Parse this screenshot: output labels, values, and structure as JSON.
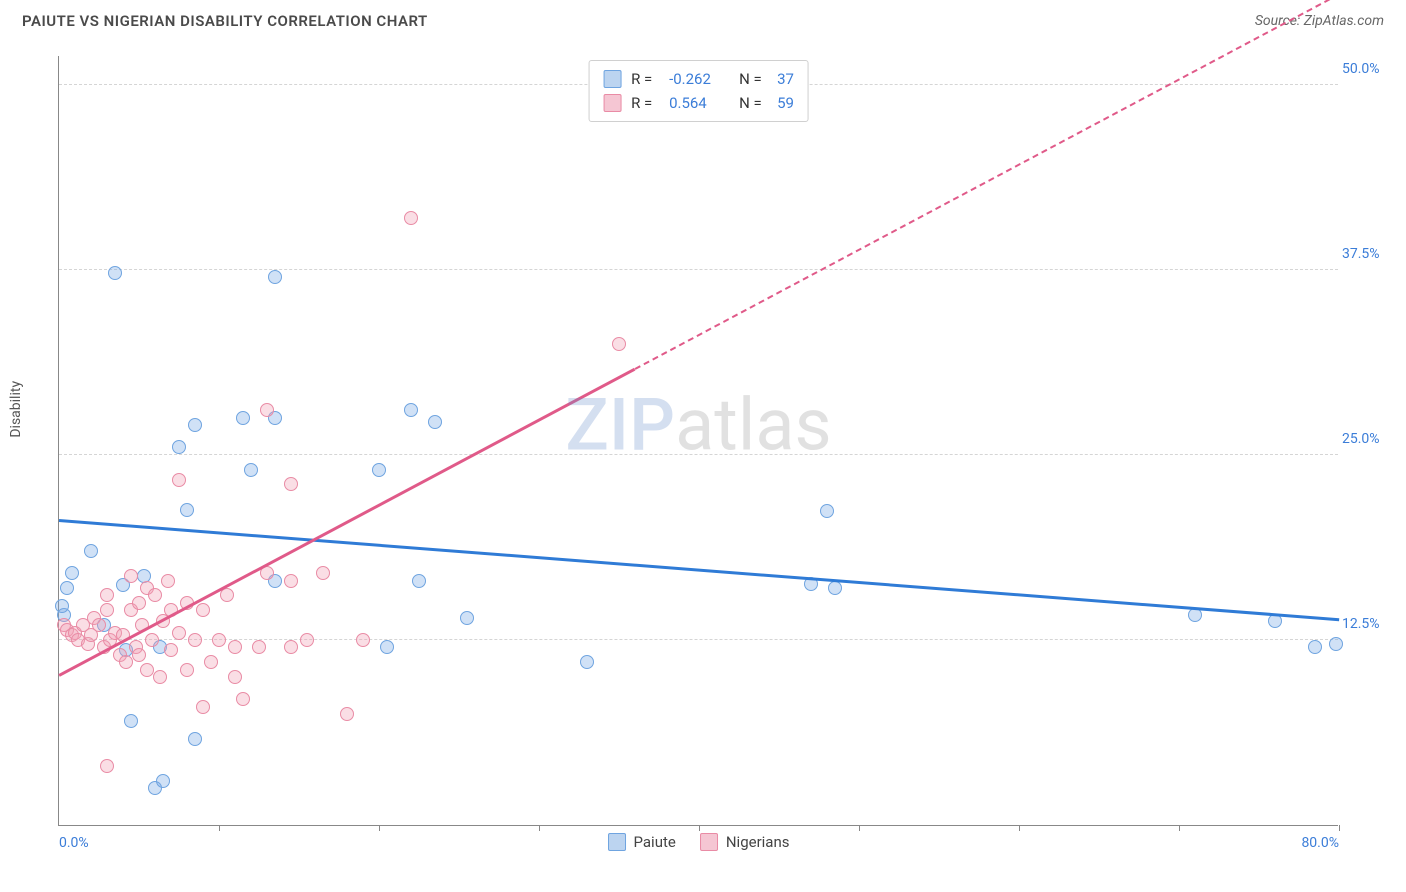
{
  "header": {
    "title": "PAIUTE VS NIGERIAN DISABILITY CORRELATION CHART",
    "source": "Source: ZipAtlas.com"
  },
  "watermark": {
    "part1": "ZIP",
    "part2": "atlas"
  },
  "chart": {
    "type": "scatter",
    "y_axis_label": "Disability",
    "x_domain": [
      0,
      80
    ],
    "y_domain": [
      0,
      52
    ],
    "x_ticks": [
      0,
      10,
      20,
      30,
      40,
      50,
      60,
      70,
      80
    ],
    "x_tick_labels_shown": {
      "0": "0.0%",
      "80": "80.0%"
    },
    "y_ticks": [
      12.5,
      25.0,
      37.5,
      50.0
    ],
    "y_tick_labels": [
      "12.5%",
      "25.0%",
      "37.5%",
      "50.0%"
    ],
    "grid_color": "#d5d5d5",
    "axis_color": "#888888",
    "tick_label_color": "#3b7dd8",
    "background_color": "#ffffff",
    "marker_radius": 7,
    "marker_stroke_width": 1.5,
    "series": [
      {
        "name": "Paiute",
        "fill_color": "rgba(120,170,230,0.35)",
        "stroke_color": "#6fa4e0",
        "swatch_fill": "#bcd4f0",
        "swatch_border": "#6fa4e0",
        "trend": {
          "color": "#2f7bd6",
          "width": 2.5,
          "y_at_x0": 20.5,
          "y_at_x80": 13.8,
          "solid_x_end": 80
        },
        "stats": {
          "R": "-0.262",
          "N": "37"
        },
        "points": [
          [
            3.5,
            37.3
          ],
          [
            13.5,
            37.0
          ],
          [
            48,
            21.2
          ],
          [
            48.5,
            16.0
          ],
          [
            47,
            16.3
          ],
          [
            33,
            11.0
          ],
          [
            76,
            13.8
          ],
          [
            78.5,
            12.0
          ],
          [
            79.8,
            12.2
          ],
          [
            71,
            14.2
          ],
          [
            2,
            18.5
          ],
          [
            0.8,
            17.0
          ],
          [
            0.5,
            16.0
          ],
          [
            0.3,
            14.2
          ],
          [
            2.8,
            13.5
          ],
          [
            4,
            16.2
          ],
          [
            5.3,
            16.8
          ],
          [
            7.5,
            25.5
          ],
          [
            8,
            21.3
          ],
          [
            8.5,
            27.0
          ],
          [
            11.5,
            27.5
          ],
          [
            12,
            24.0
          ],
          [
            13.5,
            27.5
          ],
          [
            20,
            24.0
          ],
          [
            22,
            28.0
          ],
          [
            20.5,
            12.0
          ],
          [
            22.5,
            16.5
          ],
          [
            23.5,
            27.2
          ],
          [
            25.5,
            14.0
          ],
          [
            13.5,
            16.5
          ],
          [
            4.5,
            7.0
          ],
          [
            6,
            2.5
          ],
          [
            6.5,
            3.0
          ],
          [
            8.5,
            5.8
          ],
          [
            4.2,
            11.8
          ],
          [
            6.3,
            12.0
          ],
          [
            0.2,
            14.8
          ]
        ]
      },
      {
        "name": "Nigerians",
        "fill_color": "rgba(240,160,180,0.35)",
        "stroke_color": "#e98ba5",
        "swatch_fill": "#f5c6d3",
        "swatch_border": "#e98ba5",
        "trend": {
          "color": "#e05a89",
          "width": 2.5,
          "y_at_x0": 10.0,
          "y_at_x80": 56.0,
          "solid_x_end": 36
        },
        "stats": {
          "R": "0.564",
          "N": "59"
        },
        "points": [
          [
            22,
            41.0
          ],
          [
            35,
            32.5
          ],
          [
            13,
            28.0
          ],
          [
            14.5,
            23.0
          ],
          [
            7.5,
            23.3
          ],
          [
            0.3,
            13.5
          ],
          [
            0.5,
            13.2
          ],
          [
            0.8,
            12.8
          ],
          [
            1.0,
            13.0
          ],
          [
            1.2,
            12.5
          ],
          [
            1.5,
            13.5
          ],
          [
            1.8,
            12.2
          ],
          [
            2.0,
            12.8
          ],
          [
            2.2,
            14.0
          ],
          [
            2.5,
            13.5
          ],
          [
            2.8,
            12.0
          ],
          [
            3.0,
            14.5
          ],
          [
            3.0,
            15.5
          ],
          [
            3.2,
            12.5
          ],
          [
            3.5,
            13.0
          ],
          [
            3.8,
            11.5
          ],
          [
            4.0,
            12.8
          ],
          [
            4.2,
            11.0
          ],
          [
            4.5,
            14.5
          ],
          [
            4.5,
            16.8
          ],
          [
            4.8,
            12.0
          ],
          [
            5.0,
            15.0
          ],
          [
            5.0,
            11.5
          ],
          [
            5.2,
            13.5
          ],
          [
            5.5,
            10.5
          ],
          [
            5.5,
            16.0
          ],
          [
            5.8,
            12.5
          ],
          [
            6.0,
            15.5
          ],
          [
            6.3,
            10.0
          ],
          [
            6.5,
            13.8
          ],
          [
            6.8,
            16.5
          ],
          [
            7.0,
            11.8
          ],
          [
            7.0,
            14.5
          ],
          [
            7.5,
            13.0
          ],
          [
            8.0,
            10.5
          ],
          [
            8.0,
            15.0
          ],
          [
            8.5,
            12.5
          ],
          [
            9.0,
            8.0
          ],
          [
            9.0,
            14.5
          ],
          [
            9.5,
            11.0
          ],
          [
            10.0,
            12.5
          ],
          [
            10.5,
            15.5
          ],
          [
            11.0,
            10.0
          ],
          [
            11.0,
            12.0
          ],
          [
            11.5,
            8.5
          ],
          [
            12.5,
            12.0
          ],
          [
            13.0,
            17.0
          ],
          [
            14.5,
            12.0
          ],
          [
            14.5,
            16.5
          ],
          [
            15.5,
            12.5
          ],
          [
            16.5,
            17.0
          ],
          [
            18.0,
            7.5
          ],
          [
            19.0,
            12.5
          ],
          [
            3.0,
            4.0
          ]
        ]
      }
    ],
    "legend_top": {
      "rows": [
        {
          "swatch_series": 0,
          "R_label": "R =",
          "N_label": "N ="
        },
        {
          "swatch_series": 1,
          "R_label": "R =",
          "N_label": "N ="
        }
      ]
    },
    "legend_bottom": {
      "items": [
        0,
        1
      ]
    }
  }
}
